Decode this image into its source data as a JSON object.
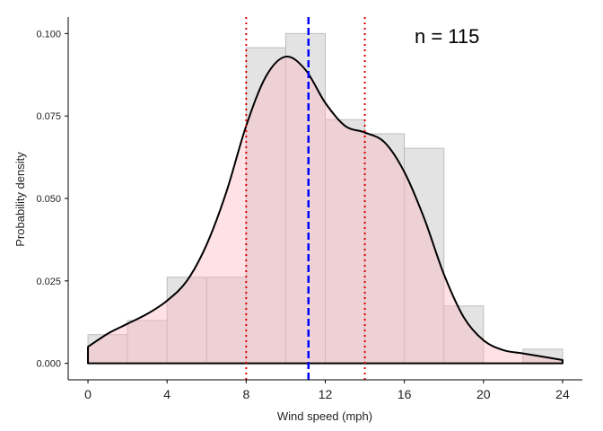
{
  "chart_data": {
    "type": "histogram",
    "xlabel": "Wind speed (mph)",
    "ylabel": "Probability density",
    "annotation": "n = 115",
    "xlim": [
      -1,
      25
    ],
    "ylim": [
      -0.005,
      0.105
    ],
    "x_ticks": [
      0,
      4,
      8,
      12,
      16,
      20,
      24
    ],
    "y_ticks": [
      0.0,
      0.025,
      0.05,
      0.075,
      0.1
    ],
    "y_tick_labels": [
      "0.000",
      "0.025",
      "0.050",
      "0.075",
      "0.100"
    ],
    "bins": [
      {
        "x0": 0,
        "x1": 2,
        "density": 0.0087
      },
      {
        "x0": 2,
        "x1": 4,
        "density": 0.013
      },
      {
        "x0": 4,
        "x1": 6,
        "density": 0.0261
      },
      {
        "x0": 6,
        "x1": 8,
        "density": 0.0261
      },
      {
        "x0": 8,
        "x1": 10,
        "density": 0.0957
      },
      {
        "x0": 10,
        "x1": 12,
        "density": 0.1
      },
      {
        "x0": 12,
        "x1": 14,
        "density": 0.0739
      },
      {
        "x0": 14,
        "x1": 16,
        "density": 0.0696
      },
      {
        "x0": 16,
        "x1": 18,
        "density": 0.0652
      },
      {
        "x0": 18,
        "x1": 20,
        "density": 0.0174
      },
      {
        "x0": 20,
        "x1": 22,
        "density": 0.0
      },
      {
        "x0": 22,
        "x1": 24,
        "density": 0.0043
      }
    ],
    "density_curve": {
      "x": [
        0,
        1,
        2,
        3,
        4,
        5,
        6,
        7,
        8,
        9,
        10,
        11,
        12,
        13,
        14,
        15,
        16,
        17,
        18,
        19,
        20,
        21,
        22,
        23,
        24
      ],
      "y": [
        0.005,
        0.009,
        0.012,
        0.015,
        0.019,
        0.025,
        0.036,
        0.052,
        0.072,
        0.087,
        0.093,
        0.089,
        0.079,
        0.072,
        0.07,
        0.067,
        0.058,
        0.044,
        0.027,
        0.014,
        0.007,
        0.004,
        0.003,
        0.002,
        0.001
      ]
    },
    "vlines": [
      {
        "x": 11.15,
        "color": "#0000ff",
        "style": "dashed"
      },
      {
        "x": 8.0,
        "color": "#e00000",
        "style": "dotted"
      },
      {
        "x": 14.0,
        "color": "#e00000",
        "style": "dotted"
      }
    ],
    "colors": {
      "histogram_fill": "#e3e3e3",
      "histogram_stroke": "#bdbdbd",
      "density_fill": "#ffb6c1",
      "density_line": "#000000"
    }
  }
}
